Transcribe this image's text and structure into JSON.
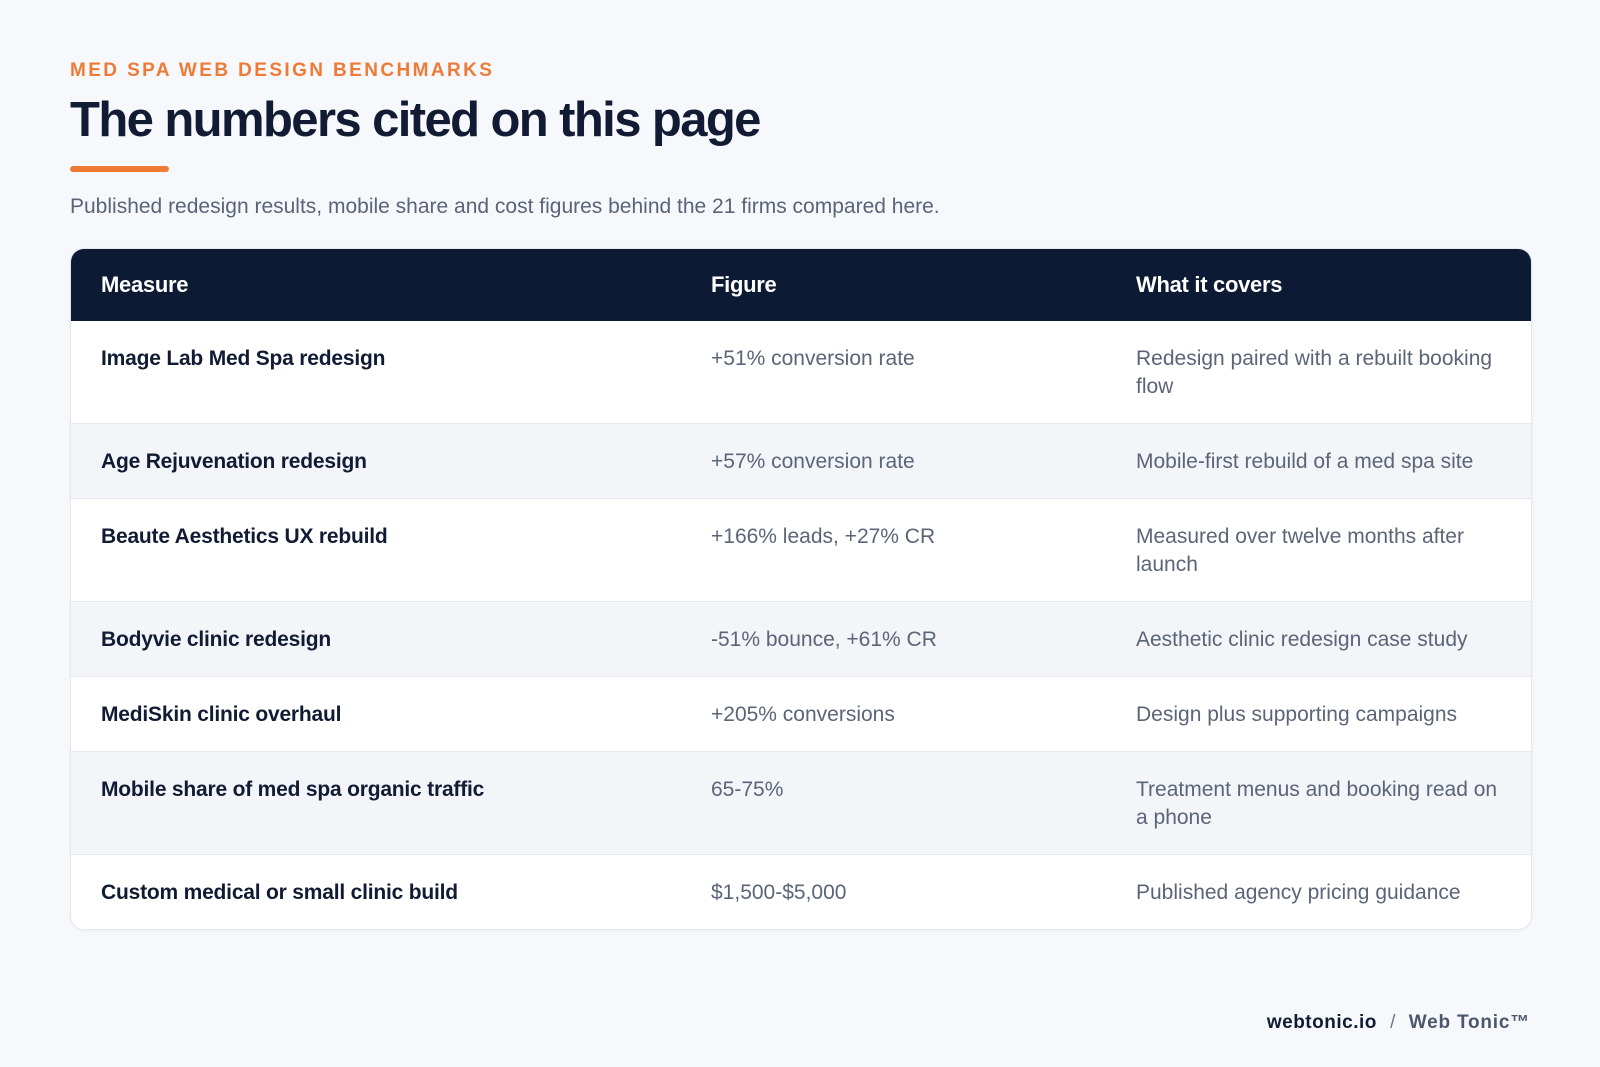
{
  "header": {
    "eyebrow": "MED SPA WEB DESIGN BENCHMARKS",
    "title": "The numbers cited on this page",
    "subtitle": "Published redesign results, mobile share and cost figures behind the 21 firms compared here.",
    "accent_color": "#ef7a35"
  },
  "table": {
    "header_background": "#0d1a33",
    "columns": [
      "Measure",
      "Figure",
      "What it covers"
    ],
    "rows": [
      {
        "measure": "Image Lab Med Spa redesign",
        "figure": "+51% conversion rate",
        "covers": "Redesign paired with a rebuilt booking flow"
      },
      {
        "measure": "Age Rejuvenation redesign",
        "figure": "+57% conversion rate",
        "covers": "Mobile-first rebuild of a med spa site"
      },
      {
        "measure": "Beaute Aesthetics UX rebuild",
        "figure": "+166% leads, +27% CR",
        "covers": "Measured over twelve months after launch"
      },
      {
        "measure": "Bodyvie clinic redesign",
        "figure": "-51% bounce, +61% CR",
        "covers": "Aesthetic clinic redesign case study"
      },
      {
        "measure": "MediSkin clinic overhaul",
        "figure": "+205% conversions",
        "covers": "Design plus supporting campaigns"
      },
      {
        "measure": "Mobile share of med spa organic traffic",
        "figure": "65-75%",
        "covers": "Treatment menus and booking read on a phone"
      },
      {
        "measure": "Custom medical or small clinic build",
        "figure": "$1,500-$5,000",
        "covers": "Published agency pricing guidance"
      }
    ]
  },
  "footer": {
    "domain": "webtonic.io",
    "separator": "/",
    "brand": "Web Tonic™"
  }
}
